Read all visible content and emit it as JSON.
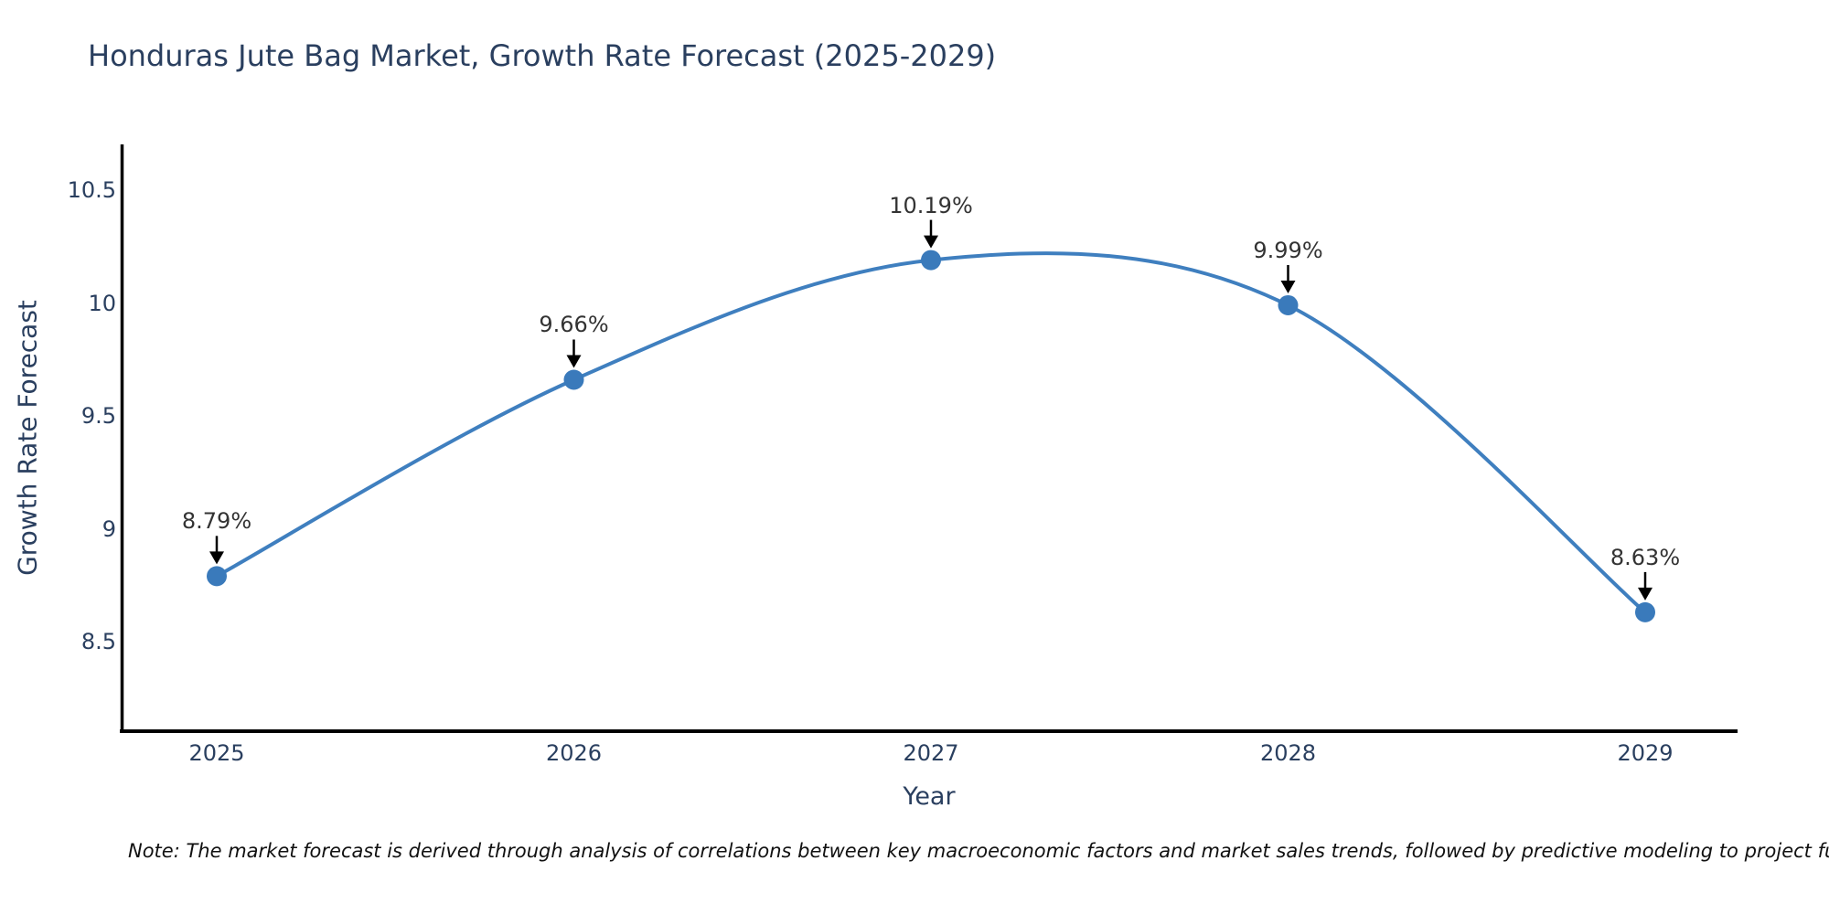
{
  "title": "Honduras Jute Bag Market, Growth Rate Forecast (2025-2029)",
  "footnote": "Note: The market forecast is derived through analysis of correlations between key macroeconomic factors and market sales trends, followed by predictive modeling to project future sal",
  "colors": {
    "background": "#ffffff",
    "font": "#2a3f5f",
    "axis_line": "#000000",
    "trace_line": "#3f7fbf",
    "marker_fill": "#3a7abb",
    "annotation_text": "#333333",
    "annotation_arrow": "#000000"
  },
  "chart_data": {
    "type": "line",
    "title": "Honduras Jute Bag Market, Growth Rate Forecast (2025-2029)",
    "xlabel": "Year",
    "ylabel": "Growth Rate Forecast",
    "x": [
      2025,
      2026,
      2027,
      2028,
      2029
    ],
    "values": [
      8.79,
      9.66,
      10.19,
      9.99,
      8.63
    ],
    "point_labels": [
      "8.79%",
      "9.66%",
      "10.19%",
      "9.99%",
      "8.63%"
    ],
    "xtick_labels": [
      "2025",
      "2026",
      "2027",
      "2028",
      "2029"
    ],
    "ytick_values": [
      8.5,
      9,
      9.5,
      10,
      10.5
    ],
    "ytick_labels": [
      "8.5",
      "9",
      "9.5",
      "10",
      "10.5"
    ],
    "ylim": [
      8.1,
      10.72
    ],
    "xlim": [
      2024.73,
      2029.26
    ],
    "line_shape": "spline",
    "grid": false,
    "legend_visible": false,
    "marker": "circle",
    "annotation_style": "value label with downward black arrow above each data point"
  }
}
